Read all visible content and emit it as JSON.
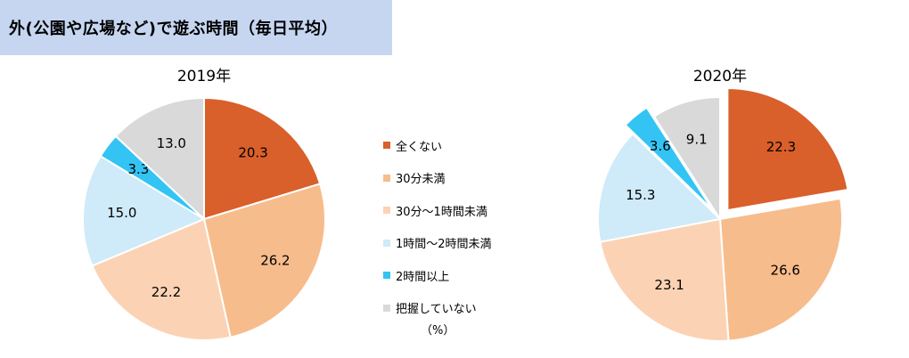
{
  "title": "外(公園や広場など)で遊ぶ時間（毎日平均）",
  "unit": "（%）",
  "chart_data": [
    {
      "type": "pie",
      "title": "2019年",
      "categories": [
        "全くない",
        "30分未満",
        "30分～1時間未満",
        "1時間～2時間未満",
        "2時間以上",
        "把握していない"
      ],
      "values": [
        20.3,
        26.2,
        22.2,
        15.0,
        3.3,
        13.0
      ],
      "value_labels": [
        "20.3",
        "26.2",
        "22.2",
        "15.0",
        "3.3",
        "13.0"
      ],
      "start": "12 o'clock",
      "direction": "clockwise",
      "exploded": []
    },
    {
      "type": "pie",
      "title": "2020年",
      "categories": [
        "全くない",
        "30分未満",
        "30分～1時間未満",
        "1時間～2時間未満",
        "2時間以上",
        "把握していない"
      ],
      "values": [
        22.3,
        26.6,
        23.1,
        15.3,
        3.6,
        9.1
      ],
      "value_labels": [
        "22.3",
        "26.6",
        "23.1",
        "15.3",
        "3.6",
        "9.1"
      ],
      "start": "12 o'clock",
      "direction": "clockwise",
      "exploded": [
        0,
        4
      ]
    }
  ],
  "legend": {
    "placement": "center",
    "items": [
      {
        "label": "全くない",
        "color": "#d95f2b"
      },
      {
        "label": "30分未満",
        "color": "#f7bc8c"
      },
      {
        "label": "30分～1時間未満",
        "color": "#fbd3b4"
      },
      {
        "label": "1時間～2時間未満",
        "color": "#cfeaf9"
      },
      {
        "label": "2時間以上",
        "color": "#33c4f4"
      },
      {
        "label": "把握していない",
        "color": "#d9d9d9"
      }
    ]
  }
}
